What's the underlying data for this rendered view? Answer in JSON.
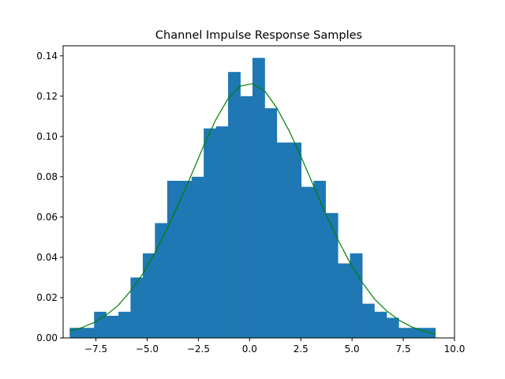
{
  "chart_data": {
    "type": "bar",
    "title": "Channel Impulse Response Samples",
    "xlabel": "",
    "ylabel": "",
    "xlim": [
      -9.1,
      10.0
    ],
    "ylim": [
      0.0,
      0.145
    ],
    "grid": false,
    "x_ticks": [
      -7.5,
      -5.0,
      -2.5,
      0.0,
      2.5,
      5.0,
      7.5,
      10.0
    ],
    "x_tick_labels": [
      "−7.5",
      "−5.0",
      "−2.5",
      "0.0",
      "2.5",
      "5.0",
      "7.5",
      "10.0"
    ],
    "y_ticks": [
      0.0,
      0.02,
      0.04,
      0.06,
      0.08,
      0.1,
      0.12,
      0.14
    ],
    "y_tick_labels": [
      "0.00",
      "0.02",
      "0.04",
      "0.06",
      "0.08",
      "0.10",
      "0.12",
      "0.14"
    ],
    "histogram": {
      "color": "#1f77b4",
      "bin_edges": [
        -8.78,
        -8.19,
        -7.59,
        -7.0,
        -6.4,
        -5.81,
        -5.21,
        -4.62,
        -4.02,
        -3.43,
        -2.83,
        -2.24,
        -1.64,
        -1.05,
        -0.45,
        0.14,
        0.74,
        1.33,
        1.93,
        2.52,
        3.12,
        3.71,
        4.31,
        4.9,
        5.5,
        6.09,
        6.69,
        7.28,
        7.88,
        8.47,
        9.07
      ],
      "density": [
        0.005,
        0.005,
        0.013,
        0.011,
        0.013,
        0.03,
        0.042,
        0.057,
        0.078,
        0.078,
        0.08,
        0.104,
        0.105,
        0.132,
        0.12,
        0.139,
        0.114,
        0.097,
        0.097,
        0.075,
        0.078,
        0.062,
        0.037,
        0.042,
        0.017,
        0.013,
        0.01,
        0.005,
        0.005,
        0.005
      ]
    },
    "curve": {
      "color": "#008000",
      "x": [
        -8.78,
        -8.19,
        -7.59,
        -7.0,
        -6.4,
        -5.81,
        -5.21,
        -4.62,
        -4.02,
        -3.43,
        -2.83,
        -2.24,
        -1.64,
        -1.05,
        -0.45,
        0.14,
        0.74,
        1.33,
        1.93,
        2.52,
        3.12,
        3.71,
        4.31,
        4.9,
        5.5,
        6.09,
        6.69,
        7.28,
        7.88,
        8.47,
        9.07
      ],
      "y": [
        0.0035,
        0.0051,
        0.0077,
        0.0113,
        0.0163,
        0.0233,
        0.0318,
        0.0423,
        0.0543,
        0.0672,
        0.0812,
        0.0954,
        0.1085,
        0.1188,
        0.125,
        0.1262,
        0.1226,
        0.1141,
        0.1028,
        0.0897,
        0.0756,
        0.0616,
        0.0488,
        0.0373,
        0.0275,
        0.0194,
        0.0134,
        0.0089,
        0.0056,
        0.0034,
        0.002
      ]
    }
  }
}
